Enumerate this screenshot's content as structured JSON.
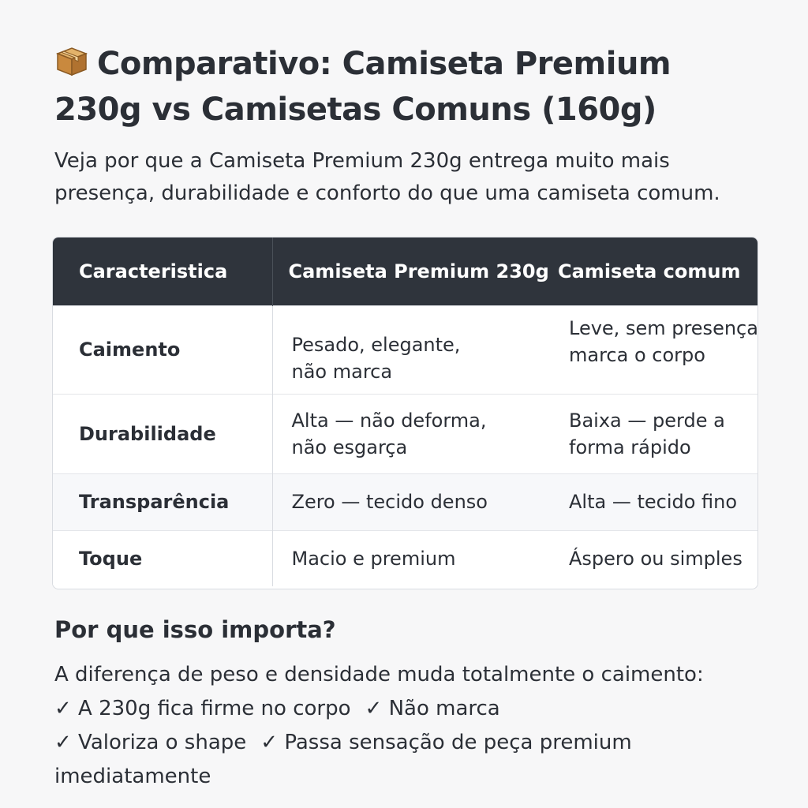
{
  "header": {
    "title": "Comparativo: Camiseta Premium 230g vs Camisetas Comuns (160g)",
    "subtitle": "Veja por que a Camiseta Premium 230g entrega muito mais presença, durabilidade e conforto do que uma camiseta comum.",
    "title_icon": "package-box-icon"
  },
  "table": {
    "columns": [
      "Caracteristica",
      "Camiseta Premium 230g",
      "Camiseta comum"
    ],
    "rows": [
      {
        "feature": "Caimento",
        "premium": [
          "Pesado, elegante,",
          "não marca"
        ],
        "common": [
          "Leve, sem presença,",
          "marca o corpo"
        ]
      },
      {
        "feature": "Durabilidade",
        "premium": [
          "Alta — não deforma,",
          "não esgarça"
        ],
        "common": [
          "Baixa — perde a",
          "forma rápido"
        ]
      },
      {
        "feature": "Transparência",
        "premium": [
          "Zero — tecido denso"
        ],
        "common": [
          "Alta — tecido fino"
        ]
      },
      {
        "feature": "Toque",
        "premium": [
          "Macio e premium"
        ],
        "common": [
          "Áspero ou simples"
        ]
      }
    ]
  },
  "why": {
    "title": "Por que isso importa?",
    "intro": "A diferença de peso e densidade muda totalmente o caimento:",
    "benefits": [
      "✓ A 230g fica firme no corpo",
      "✓ Não marca",
      "✓ Valoriza o shape",
      "✓ Passa sensação de peça premium imediatamente"
    ]
  }
}
